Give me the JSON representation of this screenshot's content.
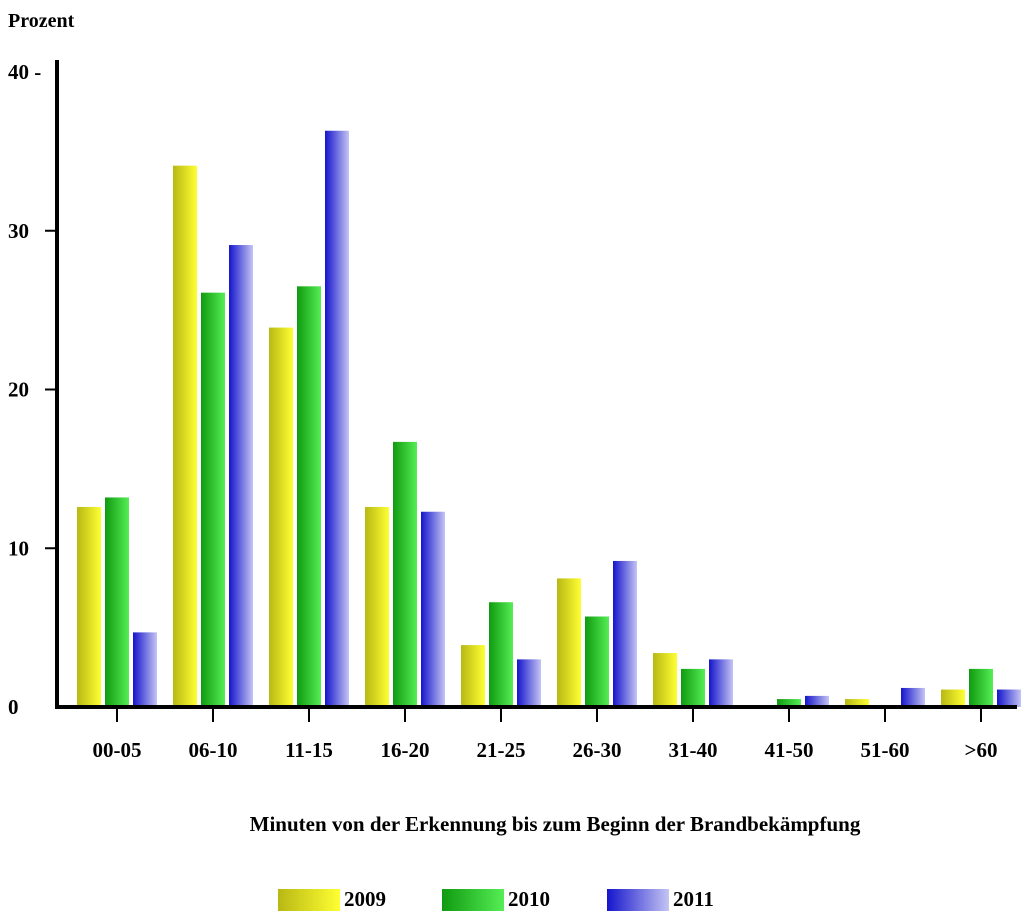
{
  "chart_data": {
    "type": "bar",
    "ylabel": "Prozent",
    "xlabel": "Minuten von der Erkennung bis zum Beginn der Brandbekämpfung",
    "categories": [
      "00-05",
      "06-10",
      "11-15",
      "16-20",
      "21-25",
      "26-30",
      "31-40",
      "41-50",
      "51-60",
      ">60"
    ],
    "series": [
      {
        "name": "2009",
        "values": [
          12.6,
          34.1,
          23.9,
          12.6,
          3.9,
          8.1,
          3.4,
          0.1,
          0.5,
          1.1
        ]
      },
      {
        "name": "2010",
        "values": [
          13.2,
          26.1,
          26.5,
          16.7,
          6.6,
          5.7,
          2.4,
          0.5,
          0.1,
          2.4
        ]
      },
      {
        "name": "2011",
        "values": [
          4.7,
          29.1,
          36.3,
          12.3,
          3.0,
          9.2,
          3.0,
          0.7,
          1.2,
          1.1
        ]
      }
    ],
    "yticks": [
      "0",
      "10",
      "20",
      "30",
      "40 -"
    ],
    "ylim": [
      0,
      40
    ],
    "grid": false,
    "legend_position": "bottom",
    "colors": {
      "2009": [
        "#b8b814",
        "#ffff33"
      ],
      "2010": [
        "#109a10",
        "#55ee55"
      ],
      "2011": [
        "#1515cc",
        "#c4c4f4"
      ]
    }
  }
}
